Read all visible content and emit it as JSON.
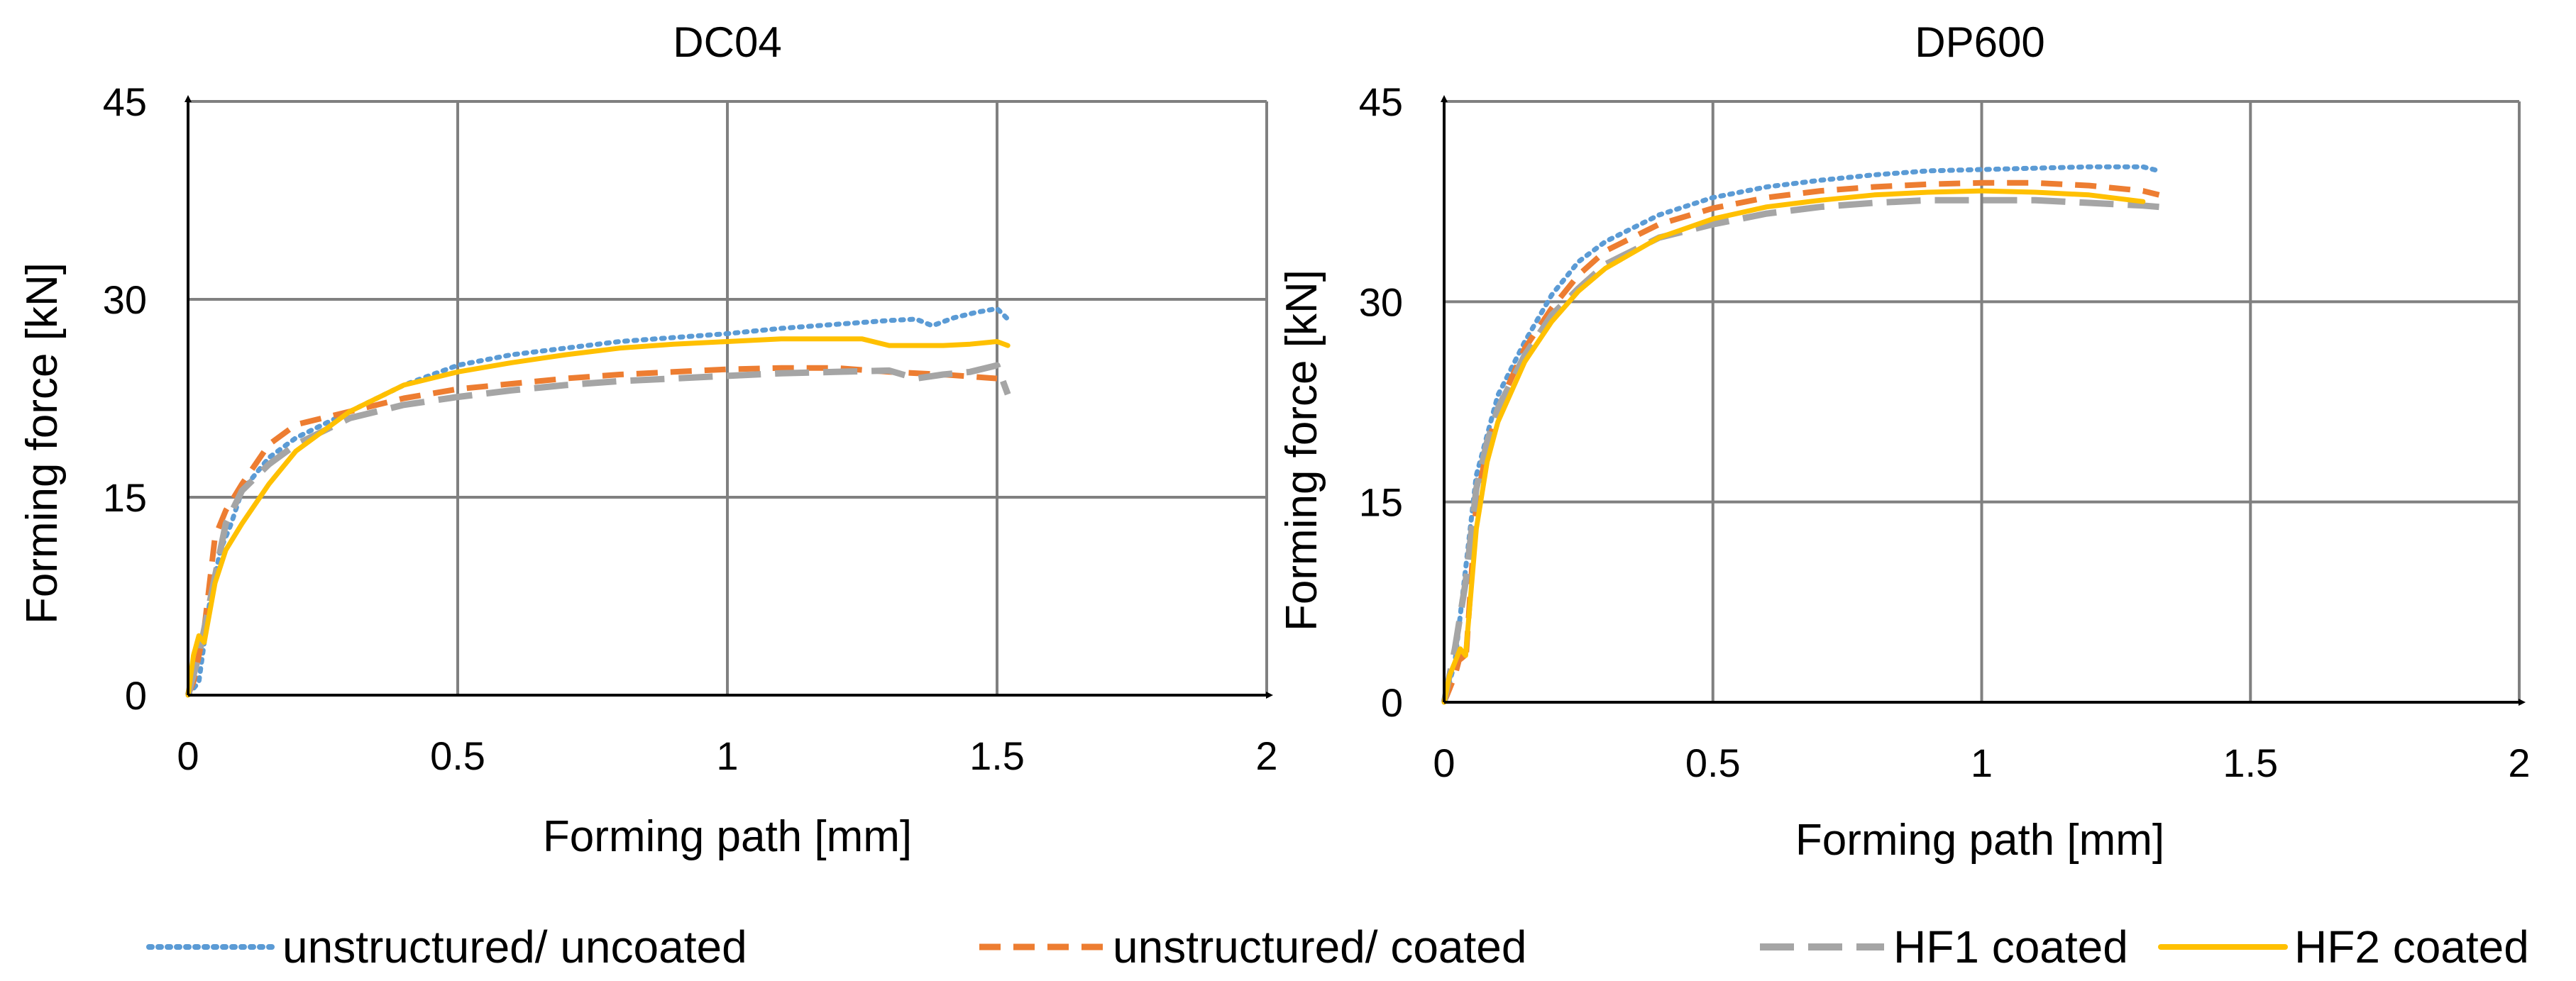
{
  "colors": {
    "unstructured_uncoated": "#5B9BD5",
    "unstructured_coated": "#ED7D31",
    "hf1_coated": "#A5A5A5",
    "hf2_coated": "#FFC000",
    "grid": "#808080",
    "axis": "#000000"
  },
  "legend": {
    "placement": "bottom",
    "items": [
      {
        "key": "unstructured_uncoated",
        "label": "unstructured/ uncoated",
        "style": "dotted"
      },
      {
        "key": "unstructured_coated",
        "label": "unstructured/ coated",
        "style": "dashed"
      },
      {
        "key": "hf1_coated",
        "label": "HF1 coated",
        "style": "long-dashed"
      },
      {
        "key": "hf2_coated",
        "label": "HF2 coated",
        "style": "solid"
      }
    ]
  },
  "chart_data": [
    {
      "type": "line",
      "title": "DC04",
      "xlabel": "Forming path [mm]",
      "ylabel": "Forming force [kN]",
      "xlim": [
        0,
        2
      ],
      "ylim": [
        0,
        45
      ],
      "xticks": [
        "0",
        "0.5",
        "1",
        "1.5",
        "2"
      ],
      "yticks": [
        "0",
        "15",
        "30",
        "45"
      ],
      "grid": true,
      "series": [
        {
          "name": "unstructured/ uncoated",
          "key": "unstructured_uncoated",
          "x": [
            0,
            0.02,
            0.04,
            0.06,
            0.08,
            0.1,
            0.15,
            0.2,
            0.3,
            0.4,
            0.5,
            0.6,
            0.7,
            0.8,
            0.9,
            1.0,
            1.1,
            1.2,
            1.3,
            1.35,
            1.38,
            1.42,
            1.46,
            1.5,
            1.52
          ],
          "y": [
            0,
            1,
            7,
            11,
            13,
            15.5,
            18,
            19.5,
            21.5,
            23.5,
            25,
            25.8,
            26.3,
            26.8,
            27.1,
            27.4,
            27.8,
            28.1,
            28.4,
            28.5,
            28.0,
            28.6,
            29.0,
            29.3,
            28.5
          ]
        },
        {
          "name": "unstructured/ coated",
          "key": "unstructured_coated",
          "x": [
            0,
            0.01,
            0.02,
            0.03,
            0.05,
            0.07,
            0.1,
            0.15,
            0.2,
            0.3,
            0.4,
            0.5,
            0.6,
            0.7,
            0.8,
            0.9,
            1.0,
            1.1,
            1.2,
            1.3,
            1.4,
            1.5
          ],
          "y": [
            0,
            1,
            3,
            5,
            12,
            14,
            16,
            19,
            20.5,
            21.5,
            22.5,
            23.2,
            23.6,
            24.0,
            24.3,
            24.5,
            24.7,
            24.8,
            24.8,
            24.5,
            24.3,
            24.0
          ]
        },
        {
          "name": "HF1 coated",
          "key": "hf1_coated",
          "x": [
            0,
            0.02,
            0.04,
            0.05,
            0.07,
            0.1,
            0.15,
            0.2,
            0.3,
            0.4,
            0.5,
            0.6,
            0.7,
            0.8,
            0.9,
            1.0,
            1.1,
            1.2,
            1.3,
            1.35,
            1.4,
            1.45,
            1.5,
            1.52
          ],
          "y": [
            0,
            3,
            7,
            9,
            13,
            15.5,
            17.5,
            19,
            21,
            22,
            22.6,
            23.1,
            23.5,
            23.8,
            24.0,
            24.2,
            24.4,
            24.5,
            24.6,
            24.0,
            24.3,
            24.5,
            25.0,
            22.8
          ]
        },
        {
          "name": "HF2 coated",
          "key": "hf2_coated",
          "x": [
            0,
            0.01,
            0.02,
            0.03,
            0.05,
            0.07,
            0.1,
            0.15,
            0.2,
            0.3,
            0.4,
            0.5,
            0.6,
            0.7,
            0.8,
            0.9,
            1.0,
            1.1,
            1.2,
            1.25,
            1.3,
            1.35,
            1.4,
            1.45,
            1.5,
            1.52
          ],
          "y": [
            0,
            3,
            4.5,
            4,
            8.5,
            11,
            13,
            16,
            18.5,
            21.5,
            23.5,
            24.5,
            25.2,
            25.8,
            26.3,
            26.6,
            26.8,
            27.0,
            27.0,
            27.0,
            26.5,
            26.5,
            26.5,
            26.6,
            26.8,
            26.5
          ]
        }
      ]
    },
    {
      "type": "line",
      "title": "DP600",
      "xlabel": "Forming path [mm]",
      "ylabel": "Forming force [kN]",
      "xlim": [
        0,
        2
      ],
      "ylim": [
        0,
        45
      ],
      "xticks": [
        "0",
        "0.5",
        "1",
        "1.5",
        "2"
      ],
      "yticks": [
        "0",
        "15",
        "30",
        "45"
      ],
      "grid": true,
      "series": [
        {
          "name": "unstructured/ uncoated",
          "key": "unstructured_uncoated",
          "x": [
            0,
            0.02,
            0.04,
            0.06,
            0.08,
            0.1,
            0.15,
            0.2,
            0.25,
            0.3,
            0.4,
            0.5,
            0.6,
            0.7,
            0.8,
            0.9,
            1.0,
            1.1,
            1.2,
            1.3,
            1.33
          ],
          "y": [
            0,
            3,
            10,
            17,
            20,
            23,
            27,
            30.5,
            33,
            34.5,
            36.5,
            37.8,
            38.6,
            39.1,
            39.5,
            39.8,
            39.9,
            40.0,
            40.1,
            40.1,
            39.8
          ]
        },
        {
          "name": "unstructured/ coated",
          "key": "unstructured_coated",
          "x": [
            0,
            0.01,
            0.02,
            0.03,
            0.04,
            0.06,
            0.08,
            0.1,
            0.15,
            0.2,
            0.25,
            0.3,
            0.4,
            0.5,
            0.6,
            0.7,
            0.8,
            0.9,
            1.0,
            1.1,
            1.2,
            1.3,
            1.33
          ],
          "y": [
            0,
            1,
            2,
            3.5,
            3,
            15,
            19,
            22,
            26.5,
            29.5,
            32,
            33.8,
            35.8,
            37,
            37.8,
            38.3,
            38.6,
            38.8,
            38.9,
            38.9,
            38.7,
            38.3,
            38.0
          ]
        },
        {
          "name": "HF1 coated",
          "key": "hf1_coated",
          "x": [
            0,
            0.02,
            0.04,
            0.06,
            0.08,
            0.1,
            0.15,
            0.2,
            0.25,
            0.3,
            0.4,
            0.5,
            0.6,
            0.7,
            0.8,
            0.9,
            1.0,
            1.1,
            1.2,
            1.3,
            1.33
          ],
          "y": [
            0,
            4,
            9,
            16,
            19.5,
            22,
            26,
            29,
            31,
            32.8,
            34.8,
            35.8,
            36.6,
            37.1,
            37.4,
            37.6,
            37.6,
            37.6,
            37.4,
            37.2,
            37.1
          ]
        },
        {
          "name": "HF2 coated",
          "key": "hf2_coated",
          "x": [
            0,
            0.01,
            0.02,
            0.03,
            0.04,
            0.06,
            0.08,
            0.1,
            0.15,
            0.2,
            0.25,
            0.3,
            0.4,
            0.5,
            0.6,
            0.7,
            0.8,
            0.9,
            1.0,
            1.1,
            1.2,
            1.3
          ],
          "y": [
            0,
            2,
            3,
            4,
            3.5,
            13,
            18,
            21,
            25.5,
            28.5,
            30.8,
            32.5,
            34.8,
            36.2,
            37.1,
            37.6,
            38.0,
            38.2,
            38.3,
            38.2,
            38.0,
            37.5
          ]
        }
      ]
    }
  ]
}
